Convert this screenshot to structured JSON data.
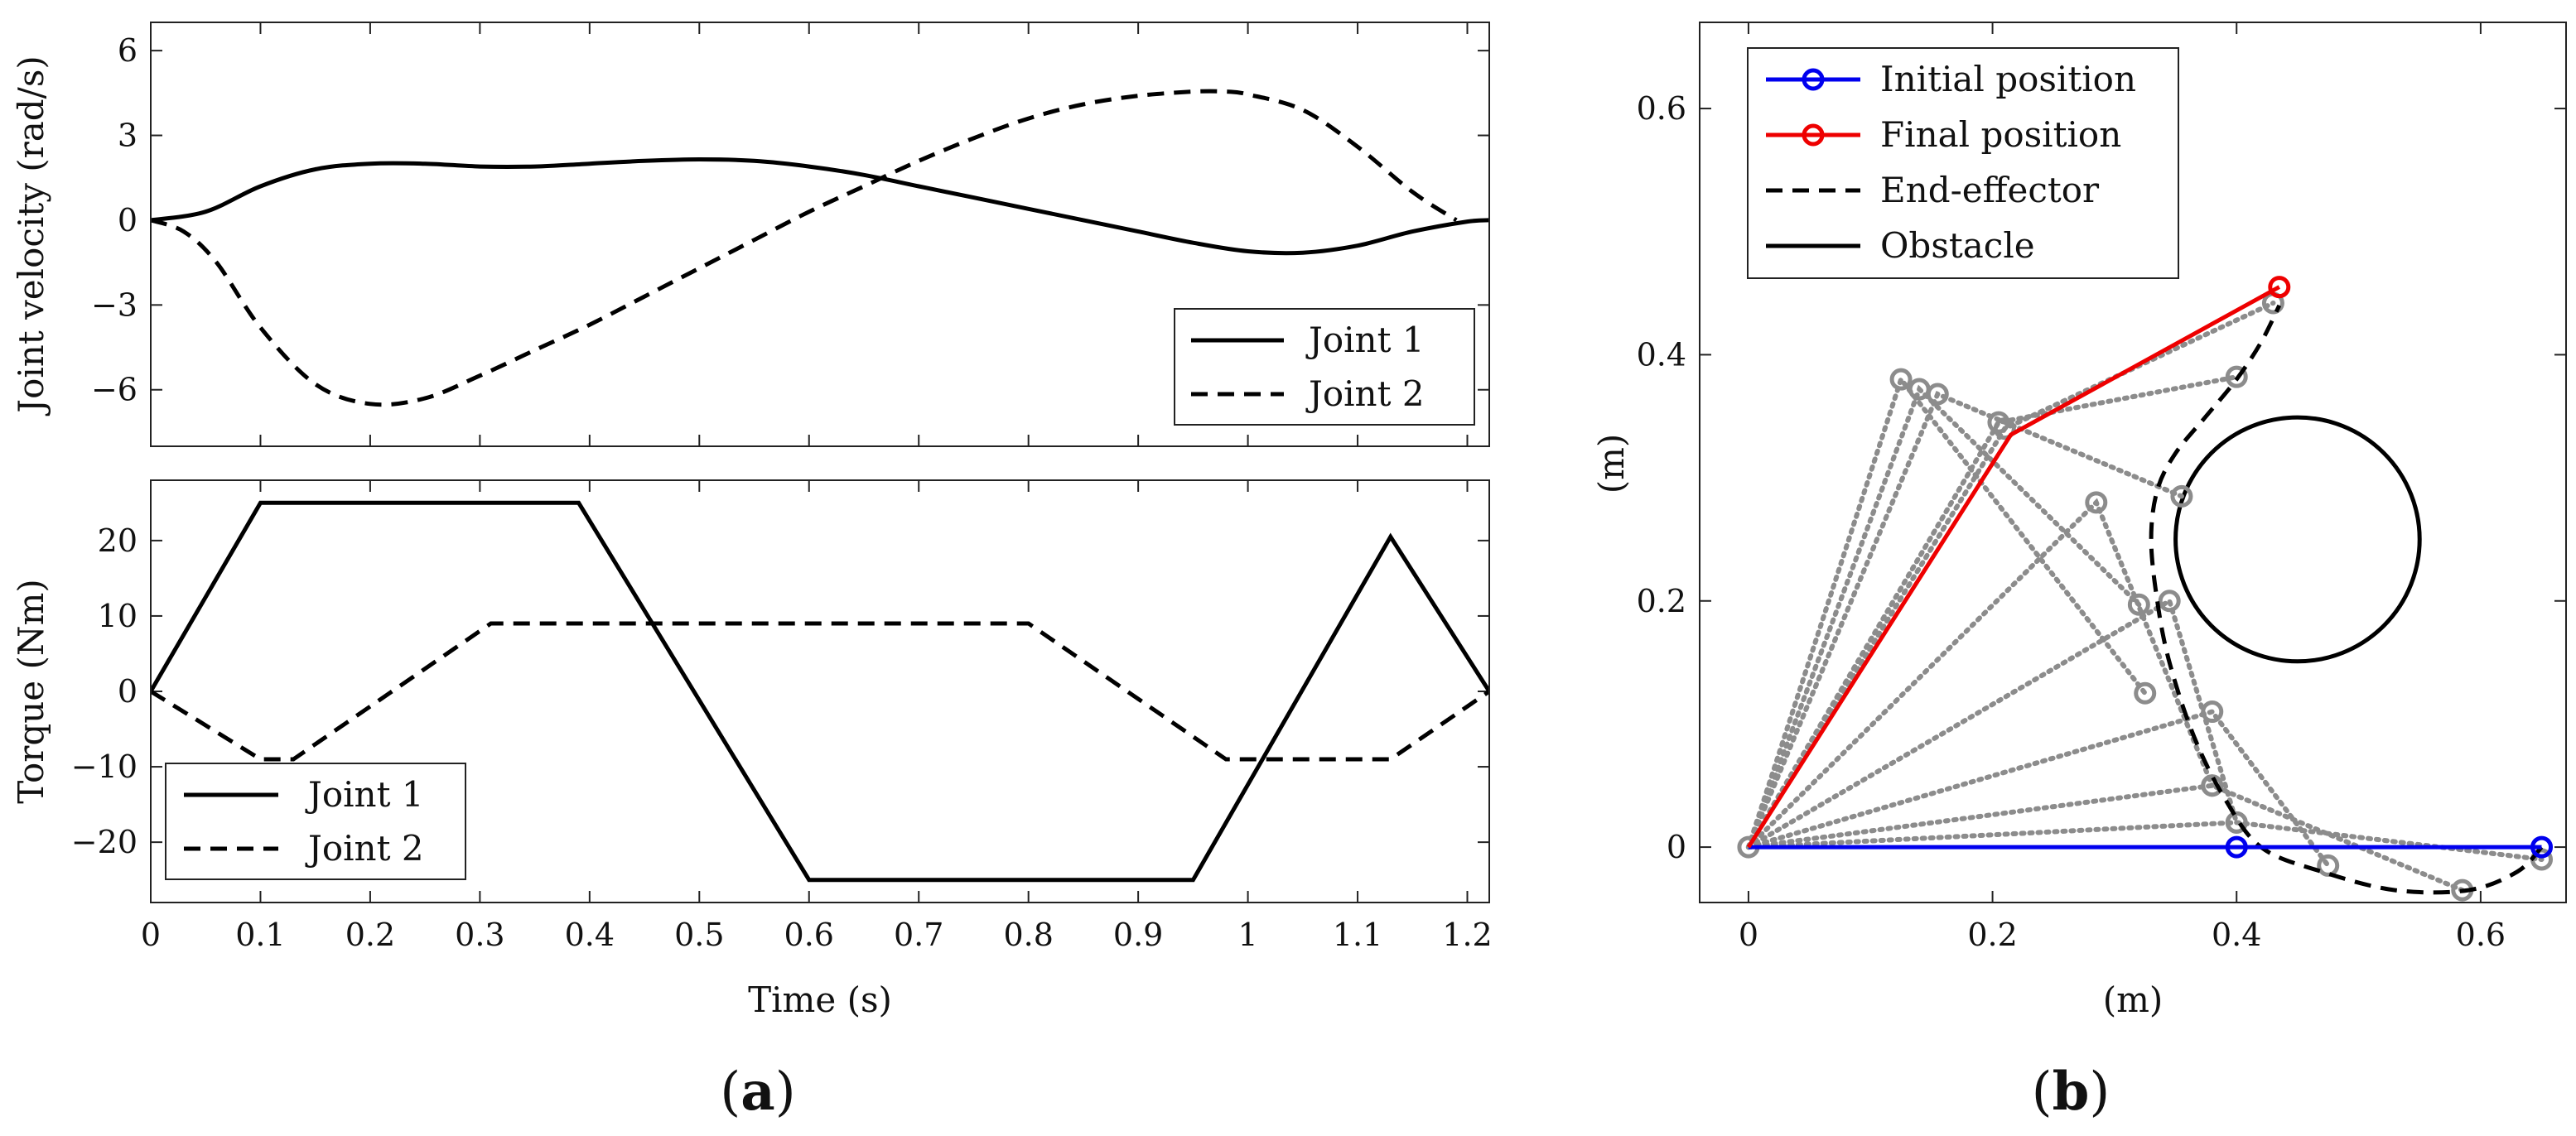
{
  "chart_data": [
    {
      "type": "line",
      "id": "a-top",
      "title": "",
      "xlabel": "",
      "ylabel": "Joint velocity (rad/s)",
      "xlim": [
        0,
        1.22
      ],
      "ylim": [
        -8,
        7
      ],
      "xticks": [
        "0",
        "0.1",
        "0.2",
        "0.3",
        "0.4",
        "0.5",
        "0.6",
        "0.7",
        "0.8",
        "0.9",
        "1",
        "1.1",
        "1.2"
      ],
      "yticks": [
        "6",
        "3",
        "0",
        "−3",
        "−6"
      ],
      "legend": [
        "Joint 1",
        "Joint 2"
      ],
      "legend_position": "bottom-right",
      "series": [
        {
          "name": "Joint 1",
          "style": "solid",
          "x": [
            0,
            0.05,
            0.1,
            0.15,
            0.2,
            0.25,
            0.3,
            0.35,
            0.4,
            0.45,
            0.5,
            0.55,
            0.6,
            0.65,
            0.7,
            0.75,
            0.8,
            0.85,
            0.9,
            0.95,
            1.0,
            1.05,
            1.1,
            1.15,
            1.2,
            1.22
          ],
          "y": [
            0,
            0.3,
            1.2,
            1.8,
            2.0,
            2.0,
            1.9,
            1.9,
            2.0,
            2.1,
            2.15,
            2.1,
            1.9,
            1.6,
            1.2,
            0.8,
            0.4,
            0.0,
            -0.4,
            -0.8,
            -1.1,
            -1.15,
            -0.9,
            -0.4,
            -0.05,
            0
          ]
        },
        {
          "name": "Joint 2",
          "style": "dashed",
          "x": [
            0,
            0.03,
            0.06,
            0.1,
            0.15,
            0.2,
            0.25,
            0.3,
            0.35,
            0.4,
            0.45,
            0.5,
            0.55,
            0.6,
            0.65,
            0.7,
            0.75,
            0.8,
            0.85,
            0.9,
            0.95,
            0.98,
            1.0,
            1.05,
            1.1,
            1.15,
            1.19
          ],
          "y": [
            0,
            -0.4,
            -1.5,
            -3.8,
            -5.8,
            -6.5,
            -6.3,
            -5.5,
            -4.6,
            -3.7,
            -2.7,
            -1.7,
            -0.7,
            0.3,
            1.2,
            2.1,
            2.9,
            3.6,
            4.1,
            4.4,
            4.55,
            4.55,
            4.45,
            3.9,
            2.6,
            1.0,
            0
          ]
        }
      ]
    },
    {
      "type": "line",
      "id": "a-bottom",
      "title": "",
      "xlabel": "Time (s)",
      "ylabel": "Torque (Nm)",
      "xlim": [
        0,
        1.22
      ],
      "ylim": [
        -28,
        28
      ],
      "xticks": [
        "0",
        "0.1",
        "0.2",
        "0.3",
        "0.4",
        "0.5",
        "0.6",
        "0.7",
        "0.8",
        "0.9",
        "1",
        "1.1",
        "1.2"
      ],
      "yticks": [
        "20",
        "10",
        "0",
        "−10",
        "−20"
      ],
      "legend": [
        "Joint 1",
        "Joint 2"
      ],
      "legend_position": "bottom-left",
      "series": [
        {
          "name": "Joint 1",
          "style": "solid",
          "x": [
            0,
            0.1,
            0.39,
            0.6,
            0.95,
            1.13,
            1.22
          ],
          "y": [
            0,
            25,
            25,
            -25,
            -25,
            20.5,
            0
          ]
        },
        {
          "name": "Joint 2",
          "style": "dashed",
          "x": [
            0,
            0.1,
            0.13,
            0.31,
            0.8,
            0.98,
            1.13,
            1.22
          ],
          "y": [
            0,
            -9,
            -9,
            9,
            9,
            -9,
            -9,
            0
          ]
        }
      ]
    },
    {
      "type": "line",
      "id": "b",
      "title": "",
      "xlabel": "(m)",
      "ylabel": "(m)",
      "xlim": [
        -0.04,
        0.67
      ],
      "ylim": [
        -0.045,
        0.67
      ],
      "xticks": [
        "0",
        "0.2",
        "0.4",
        "0.6"
      ],
      "yticks": [
        "0.6",
        "0.4",
        "0.2",
        "0"
      ],
      "legend": [
        "Initial position",
        "Final position",
        "End-effector",
        "Obstacle"
      ],
      "legend_position": "top-left",
      "colors": {
        "initial": "#0000ee",
        "final": "#ee0000",
        "arm": "#8c8c8c",
        "ink": "#000000"
      },
      "initial_position": {
        "x": [
          0,
          0.4,
          0.65
        ],
        "y": [
          0,
          0,
          0
        ]
      },
      "final_position": {
        "x": [
          0,
          0.215,
          0.435
        ],
        "y": [
          0,
          0.335,
          0.455
        ]
      },
      "end_effector": {
        "x": [
          0.65,
          0.63,
          0.59,
          0.53,
          0.47,
          0.42,
          0.39,
          0.365,
          0.345,
          0.335,
          0.33,
          0.335,
          0.35,
          0.375,
          0.4,
          0.42,
          0.435
        ],
        "y": [
          0,
          -0.02,
          -0.035,
          -0.035,
          -0.02,
          0.0,
          0.04,
          0.09,
          0.15,
          0.2,
          0.25,
          0.29,
          0.32,
          0.35,
          0.38,
          0.41,
          0.44
        ]
      },
      "obstacle": {
        "cx": 0.45,
        "cy": 0.25,
        "r": 0.1
      },
      "intermediate_arms": [
        {
          "elbow": [
            0.4,
            0.02
          ],
          "tip": [
            0.65,
            -0.01
          ]
        },
        {
          "elbow": [
            0.38,
            0.05
          ],
          "tip": [
            0.585,
            -0.035
          ]
        },
        {
          "elbow": [
            0.38,
            0.11
          ],
          "tip": [
            0.475,
            -0.015
          ]
        },
        {
          "elbow": [
            0.345,
            0.2
          ],
          "tip": [
            0.4,
            0.02
          ]
        },
        {
          "elbow": [
            0.285,
            0.28
          ],
          "tip": [
            0.38,
            0.05
          ]
        },
        {
          "elbow": [
            0.125,
            0.38
          ],
          "tip": [
            0.325,
            0.125
          ]
        },
        {
          "elbow": [
            0.14,
            0.372
          ],
          "tip": [
            0.32,
            0.197
          ]
        },
        {
          "elbow": [
            0.155,
            0.368
          ],
          "tip": [
            0.355,
            0.285
          ]
        },
        {
          "elbow": [
            0.205,
            0.345
          ],
          "tip": [
            0.4,
            0.382
          ]
        },
        {
          "elbow": [
            0.21,
            0.34
          ],
          "tip": [
            0.43,
            0.442
          ]
        }
      ]
    }
  ],
  "captions": {
    "a": "a",
    "b": "b"
  }
}
